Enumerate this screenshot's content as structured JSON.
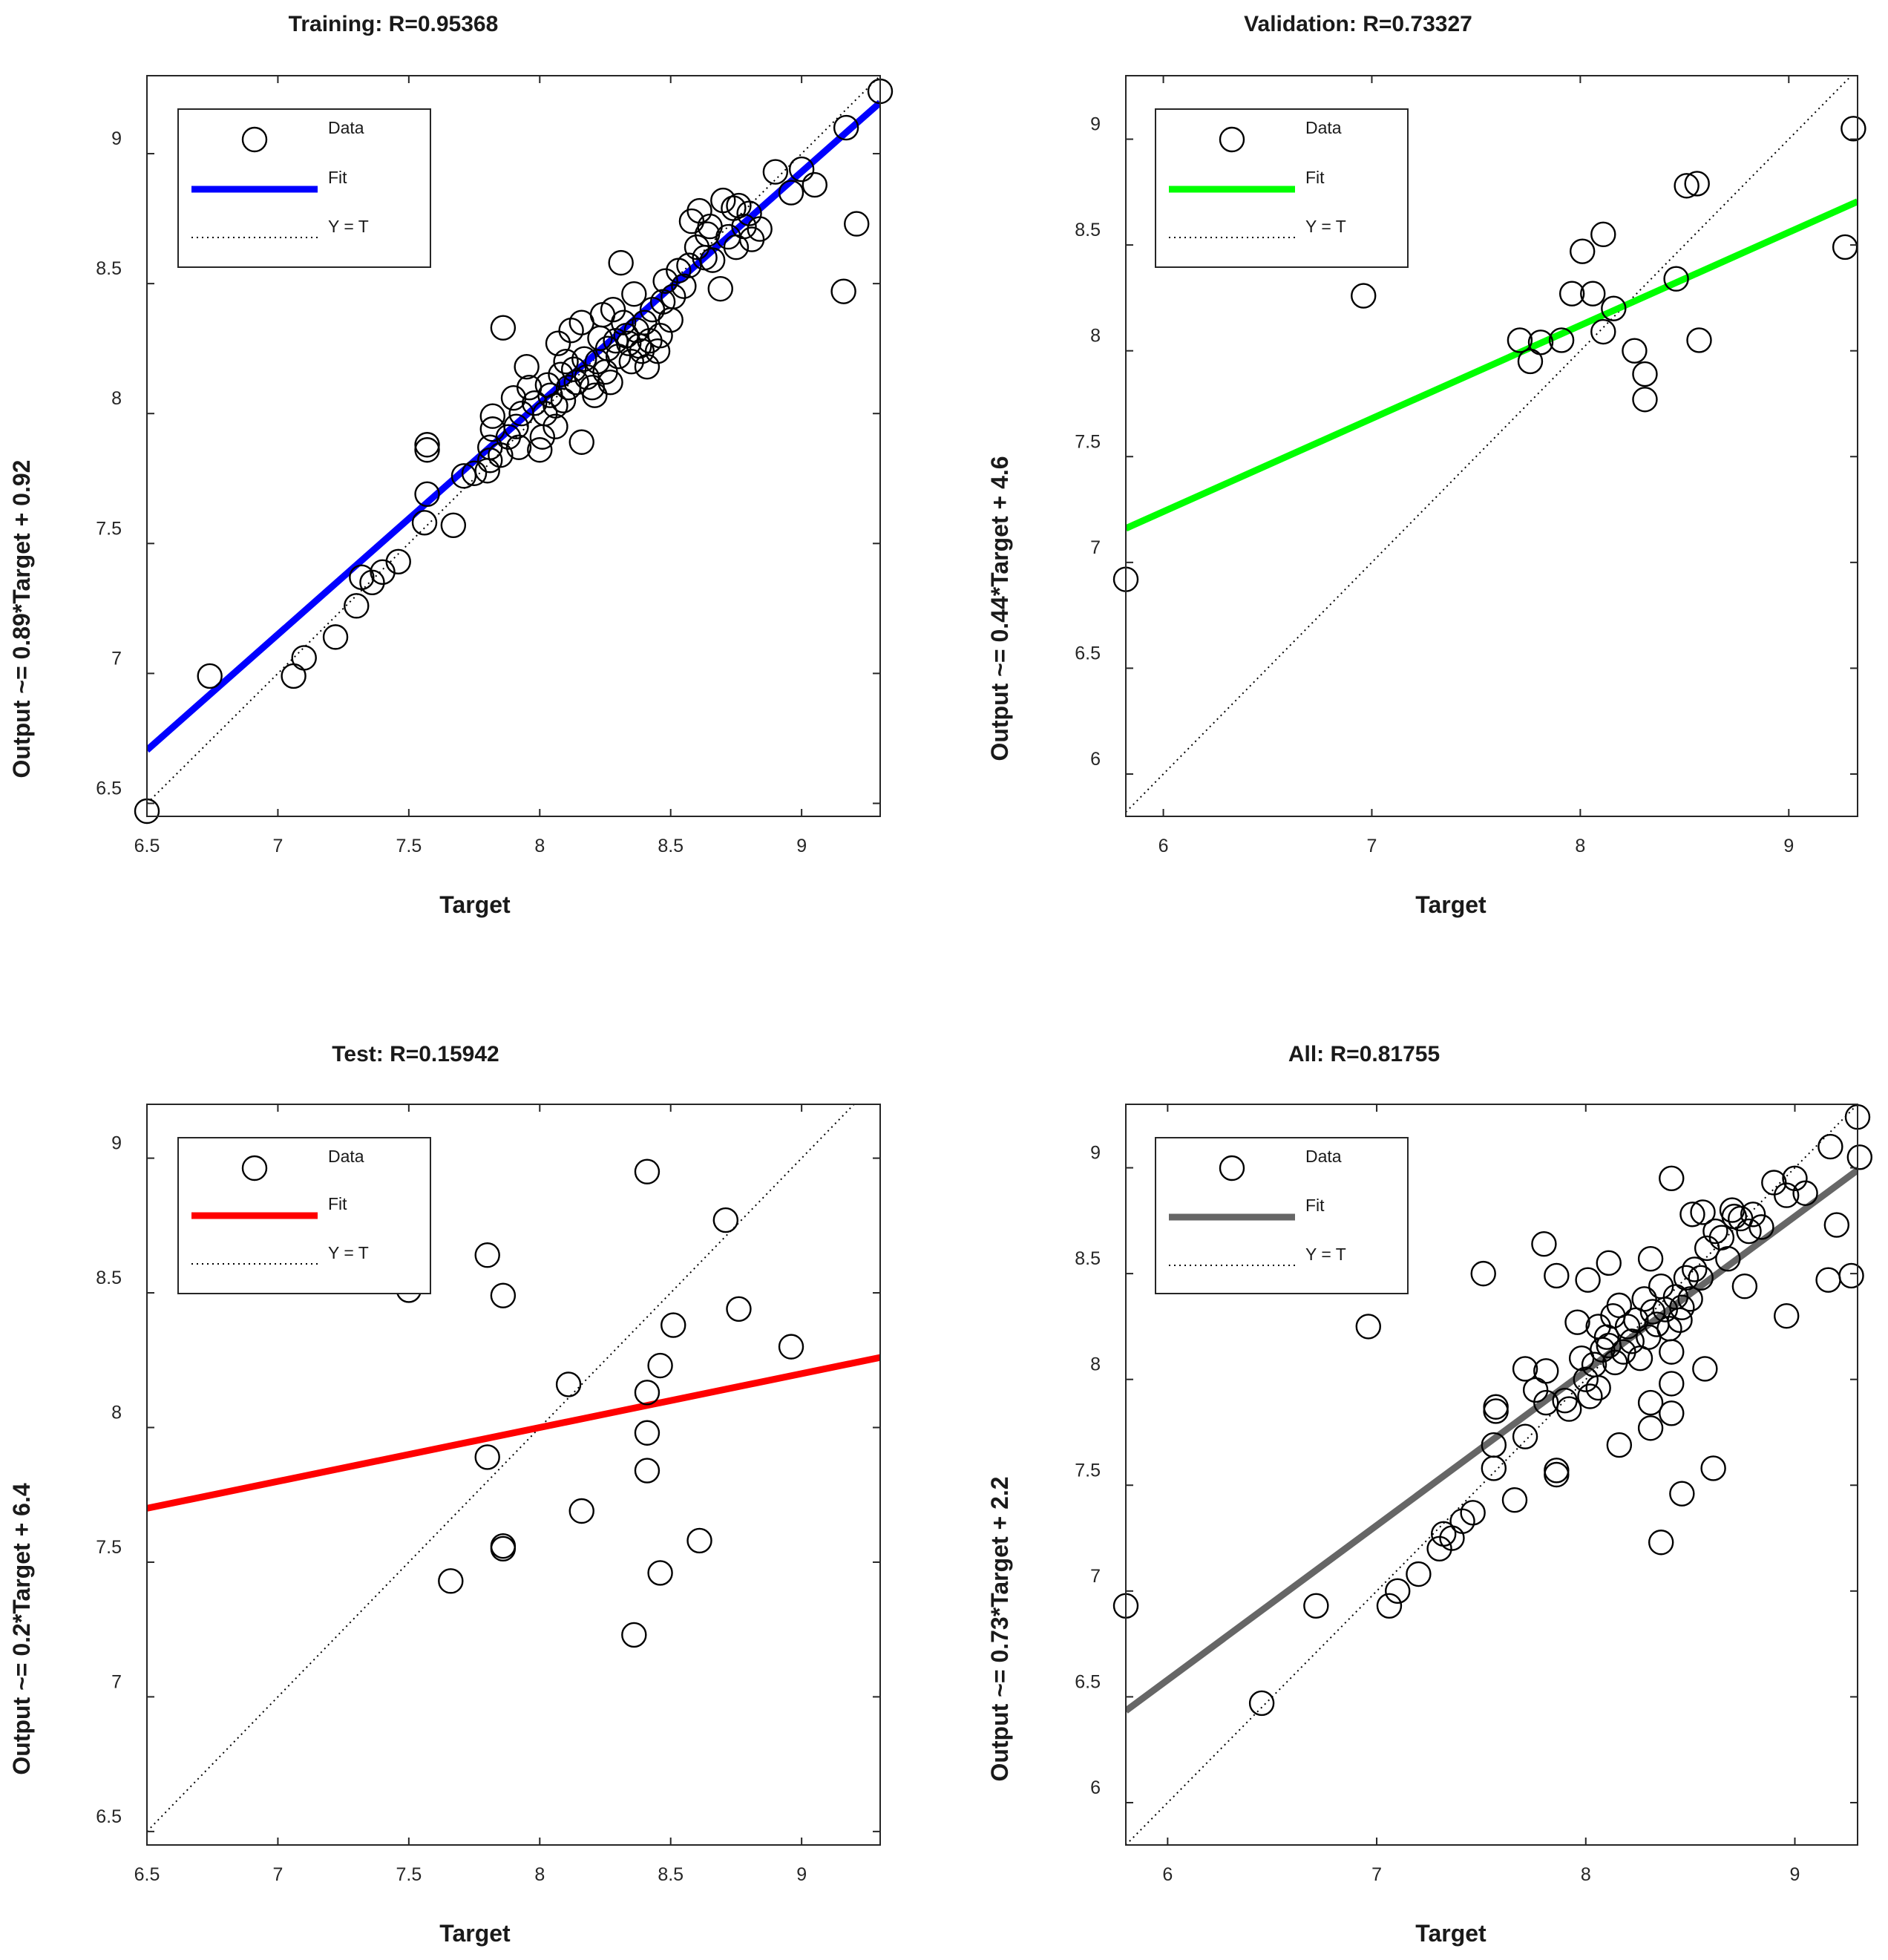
{
  "chart_data": [
    {
      "type": "scatter",
      "title": "Training: R=0.95368",
      "xlabel": "Target",
      "ylabel": "Output ~= 0.89*Target + 0.92",
      "xlim": [
        6.5,
        9.3
      ],
      "ylim": [
        6.45,
        9.3
      ],
      "xticks": [
        6.5,
        7,
        7.5,
        8,
        8.5,
        9
      ],
      "yticks": [
        6.5,
        7,
        7.5,
        8,
        8.5,
        9
      ],
      "fit": {
        "slope": 0.89,
        "intercept": 0.92,
        "color": "#0000ff"
      },
      "legend": {
        "data": "Data",
        "fit": "Fit",
        "identity": "Y = T",
        "position": "top-left"
      },
      "points": [
        [
          6.5,
          6.47
        ],
        [
          6.74,
          6.99
        ],
        [
          7.06,
          6.99
        ],
        [
          7.1,
          7.06
        ],
        [
          7.22,
          7.14
        ],
        [
          7.3,
          7.26
        ],
        [
          7.32,
          7.37
        ],
        [
          7.36,
          7.35
        ],
        [
          7.4,
          7.39
        ],
        [
          7.46,
          7.43
        ],
        [
          7.56,
          7.58
        ],
        [
          7.57,
          7.69
        ],
        [
          7.57,
          7.88
        ],
        [
          7.57,
          7.86
        ],
        [
          7.67,
          7.57
        ],
        [
          7.71,
          7.76
        ],
        [
          7.75,
          7.77
        ],
        [
          7.8,
          7.78
        ],
        [
          7.81,
          7.82
        ],
        [
          7.81,
          7.87
        ],
        [
          7.82,
          7.94
        ],
        [
          7.82,
          7.99
        ],
        [
          7.85,
          7.84
        ],
        [
          7.86,
          8.33
        ],
        [
          7.88,
          7.91
        ],
        [
          7.9,
          8.06
        ],
        [
          7.91,
          7.95
        ],
        [
          7.92,
          7.87
        ],
        [
          7.93,
          8.0
        ],
        [
          7.95,
          8.18
        ],
        [
          7.96,
          8.1
        ],
        [
          7.98,
          8.04
        ],
        [
          8.0,
          7.86
        ],
        [
          8.01,
          7.91
        ],
        [
          8.02,
          8.0
        ],
        [
          8.03,
          8.11
        ],
        [
          8.04,
          8.07
        ],
        [
          8.06,
          7.95
        ],
        [
          8.06,
          8.03
        ],
        [
          8.07,
          8.27
        ],
        [
          8.08,
          8.15
        ],
        [
          8.09,
          8.05
        ],
        [
          8.1,
          8.2
        ],
        [
          8.11,
          8.1
        ],
        [
          8.12,
          8.32
        ],
        [
          8.13,
          8.17
        ],
        [
          8.14,
          8.12
        ],
        [
          8.16,
          7.89
        ],
        [
          8.16,
          8.35
        ],
        [
          8.17,
          8.21
        ],
        [
          8.18,
          8.14
        ],
        [
          8.2,
          8.1
        ],
        [
          8.21,
          8.07
        ],
        [
          8.22,
          8.2
        ],
        [
          8.23,
          8.29
        ],
        [
          8.24,
          8.38
        ],
        [
          8.25,
          8.16
        ],
        [
          8.26,
          8.25
        ],
        [
          8.27,
          8.12
        ],
        [
          8.28,
          8.4
        ],
        [
          8.29,
          8.28
        ],
        [
          8.3,
          8.22
        ],
        [
          8.31,
          8.58
        ],
        [
          8.32,
          8.35
        ],
        [
          8.33,
          8.3
        ],
        [
          8.34,
          8.27
        ],
        [
          8.35,
          8.2
        ],
        [
          8.36,
          8.46
        ],
        [
          8.37,
          8.32
        ],
        [
          8.38,
          8.26
        ],
        [
          8.39,
          8.24
        ],
        [
          8.4,
          8.35
        ],
        [
          8.41,
          8.18
        ],
        [
          8.42,
          8.28
        ],
        [
          8.43,
          8.4
        ],
        [
          8.45,
          8.24
        ],
        [
          8.46,
          8.3
        ],
        [
          8.47,
          8.43
        ],
        [
          8.48,
          8.51
        ],
        [
          8.5,
          8.36
        ],
        [
          8.51,
          8.45
        ],
        [
          8.53,
          8.55
        ],
        [
          8.55,
          8.49
        ],
        [
          8.57,
          8.57
        ],
        [
          8.58,
          8.74
        ],
        [
          8.6,
          8.64
        ],
        [
          8.61,
          8.78
        ],
        [
          8.63,
          8.6
        ],
        [
          8.64,
          8.69
        ],
        [
          8.65,
          8.72
        ],
        [
          8.66,
          8.59
        ],
        [
          8.69,
          8.48
        ],
        [
          8.7,
          8.82
        ],
        [
          8.72,
          8.68
        ],
        [
          8.74,
          8.79
        ],
        [
          8.75,
          8.64
        ],
        [
          8.76,
          8.8
        ],
        [
          8.78,
          8.72
        ],
        [
          8.8,
          8.77
        ],
        [
          8.81,
          8.67
        ],
        [
          8.84,
          8.71
        ],
        [
          8.9,
          8.93
        ],
        [
          8.96,
          8.85
        ],
        [
          9.0,
          8.94
        ],
        [
          9.05,
          8.88
        ],
        [
          9.16,
          8.47
        ],
        [
          9.17,
          9.1
        ],
        [
          9.21,
          8.73
        ],
        [
          9.3,
          9.24
        ]
      ]
    },
    {
      "type": "scatter",
      "title": "Validation: R=0.73327",
      "xlabel": "Target",
      "ylabel": "Output ~= 0.44*Target + 4.6",
      "xlim": [
        5.82,
        9.33
      ],
      "ylim": [
        5.8,
        9.3
      ],
      "xticks": [
        6,
        7,
        8,
        9
      ],
      "yticks": [
        6,
        6.5,
        7,
        7.5,
        8,
        8.5,
        9
      ],
      "fit": {
        "slope": 0.44,
        "intercept": 4.6,
        "color": "#00ff00"
      },
      "legend": {
        "data": "Data",
        "fit": "Fit",
        "identity": "Y = T",
        "position": "top-left"
      },
      "points": [
        [
          5.82,
          6.92
        ],
        [
          6.96,
          8.26
        ],
        [
          7.71,
          8.05
        ],
        [
          7.76,
          7.95
        ],
        [
          7.81,
          8.04
        ],
        [
          7.91,
          8.05
        ],
        [
          7.96,
          8.27
        ],
        [
          8.01,
          8.47
        ],
        [
          8.06,
          8.27
        ],
        [
          8.11,
          8.55
        ],
        [
          8.11,
          8.09
        ],
        [
          8.16,
          8.2
        ],
        [
          8.26,
          8.0
        ],
        [
          8.31,
          7.89
        ],
        [
          8.31,
          7.77
        ],
        [
          8.46,
          8.34
        ],
        [
          8.51,
          8.78
        ],
        [
          8.56,
          8.79
        ],
        [
          8.57,
          8.05
        ],
        [
          9.27,
          8.49
        ],
        [
          9.31,
          9.05
        ]
      ]
    },
    {
      "type": "scatter",
      "title": "Test: R=0.15942",
      "xlabel": "Target",
      "ylabel": "Output ~= 0.2*Target + 6.4",
      "xlim": [
        6.5,
        9.3
      ],
      "ylim": [
        6.45,
        9.2
      ],
      "xticks": [
        6.5,
        7,
        7.5,
        8,
        8.5,
        9
      ],
      "yticks": [
        6.5,
        7,
        7.5,
        8,
        8.5,
        9
      ],
      "fit": {
        "slope": 0.2,
        "intercept": 6.4,
        "color": "#ff0000"
      },
      "legend": {
        "data": "Data",
        "fit": "Fit",
        "identity": "Y = T",
        "position": "top-left"
      },
      "points": [
        [
          7.5,
          8.51
        ],
        [
          7.66,
          7.43
        ],
        [
          7.8,
          8.64
        ],
        [
          7.8,
          7.89
        ],
        [
          7.86,
          8.49
        ],
        [
          7.86,
          7.56
        ],
        [
          7.86,
          7.55
        ],
        [
          8.11,
          8.16
        ],
        [
          8.16,
          7.69
        ],
        [
          8.36,
          7.23
        ],
        [
          8.41,
          8.95
        ],
        [
          8.41,
          8.13
        ],
        [
          8.41,
          7.98
        ],
        [
          8.41,
          7.84
        ],
        [
          8.46,
          8.23
        ],
        [
          8.46,
          7.46
        ],
        [
          8.51,
          8.38
        ],
        [
          8.61,
          7.58
        ],
        [
          8.71,
          8.77
        ],
        [
          8.76,
          8.44
        ],
        [
          8.96,
          8.3
        ]
      ]
    },
    {
      "type": "scatter",
      "title": "All: R=0.81755",
      "xlabel": "Target",
      "ylabel": "Output ~= 0.73*Target + 2.2",
      "xlim": [
        5.8,
        9.3
      ],
      "ylim": [
        5.8,
        9.3
      ],
      "xticks": [
        6,
        7,
        8,
        9
      ],
      "yticks": [
        6,
        6.5,
        7,
        7.5,
        8,
        8.5,
        9
      ],
      "fit": {
        "slope": 0.73,
        "intercept": 2.2,
        "color": "#666666"
      },
      "legend": {
        "data": "Data",
        "fit": "Fit",
        "identity": "Y = T",
        "position": "top-left"
      },
      "points": [
        [
          5.8,
          6.93
        ],
        [
          6.45,
          6.47
        ],
        [
          6.71,
          6.93
        ],
        [
          6.96,
          8.25
        ],
        [
          7.06,
          6.93
        ],
        [
          7.1,
          7.0
        ],
        [
          7.2,
          7.08
        ],
        [
          7.3,
          7.2
        ],
        [
          7.32,
          7.27
        ],
        [
          7.36,
          7.25
        ],
        [
          7.41,
          7.33
        ],
        [
          7.46,
          7.37
        ],
        [
          7.51,
          8.5
        ],
        [
          7.56,
          7.58
        ],
        [
          7.56,
          7.69
        ],
        [
          7.57,
          7.87
        ],
        [
          7.57,
          7.85
        ],
        [
          7.66,
          7.43
        ],
        [
          7.71,
          7.73
        ],
        [
          7.71,
          8.05
        ],
        [
          7.76,
          7.95
        ],
        [
          7.8,
          8.64
        ],
        [
          7.81,
          8.04
        ],
        [
          7.81,
          7.89
        ],
        [
          7.86,
          8.49
        ],
        [
          7.86,
          7.57
        ],
        [
          7.86,
          7.55
        ],
        [
          7.9,
          7.9
        ],
        [
          7.92,
          7.86
        ],
        [
          7.96,
          8.27
        ],
        [
          7.98,
          8.1
        ],
        [
          8.0,
          8.0
        ],
        [
          8.01,
          8.47
        ],
        [
          8.02,
          7.92
        ],
        [
          8.04,
          8.07
        ],
        [
          8.06,
          7.96
        ],
        [
          8.06,
          8.25
        ],
        [
          8.08,
          8.14
        ],
        [
          8.1,
          8.2
        ],
        [
          8.11,
          8.55
        ],
        [
          8.11,
          8.16
        ],
        [
          8.13,
          8.3
        ],
        [
          8.14,
          8.08
        ],
        [
          8.16,
          7.69
        ],
        [
          8.16,
          8.35
        ],
        [
          8.18,
          8.13
        ],
        [
          8.2,
          8.25
        ],
        [
          8.22,
          8.18
        ],
        [
          8.24,
          8.28
        ],
        [
          8.26,
          8.1
        ],
        [
          8.28,
          8.38
        ],
        [
          8.3,
          8.2
        ],
        [
          8.31,
          8.57
        ],
        [
          8.31,
          7.89
        ],
        [
          8.31,
          7.77
        ],
        [
          8.32,
          8.32
        ],
        [
          8.34,
          8.26
        ],
        [
          8.36,
          7.23
        ],
        [
          8.36,
          8.44
        ],
        [
          8.38,
          8.33
        ],
        [
          8.4,
          8.24
        ],
        [
          8.41,
          8.95
        ],
        [
          8.41,
          8.13
        ],
        [
          8.41,
          7.98
        ],
        [
          8.41,
          7.84
        ],
        [
          8.43,
          8.39
        ],
        [
          8.45,
          8.28
        ],
        [
          8.46,
          7.46
        ],
        [
          8.46,
          8.34
        ],
        [
          8.48,
          8.48
        ],
        [
          8.5,
          8.38
        ],
        [
          8.51,
          8.78
        ],
        [
          8.52,
          8.52
        ],
        [
          8.55,
          8.48
        ],
        [
          8.56,
          8.79
        ],
        [
          8.57,
          8.05
        ],
        [
          8.58,
          8.62
        ],
        [
          8.61,
          7.58
        ],
        [
          8.62,
          8.7
        ],
        [
          8.65,
          8.67
        ],
        [
          8.68,
          8.57
        ],
        [
          8.7,
          8.8
        ],
        [
          8.71,
          8.77
        ],
        [
          8.74,
          8.76
        ],
        [
          8.76,
          8.44
        ],
        [
          8.78,
          8.7
        ],
        [
          8.8,
          8.78
        ],
        [
          8.84,
          8.72
        ],
        [
          8.9,
          8.93
        ],
        [
          8.96,
          8.3
        ],
        [
          8.96,
          8.87
        ],
        [
          9.0,
          8.95
        ],
        [
          9.05,
          8.88
        ],
        [
          9.16,
          8.47
        ],
        [
          9.17,
          9.1
        ],
        [
          9.2,
          8.73
        ],
        [
          9.27,
          8.49
        ],
        [
          9.3,
          9.24
        ],
        [
          9.31,
          9.05
        ]
      ]
    }
  ]
}
